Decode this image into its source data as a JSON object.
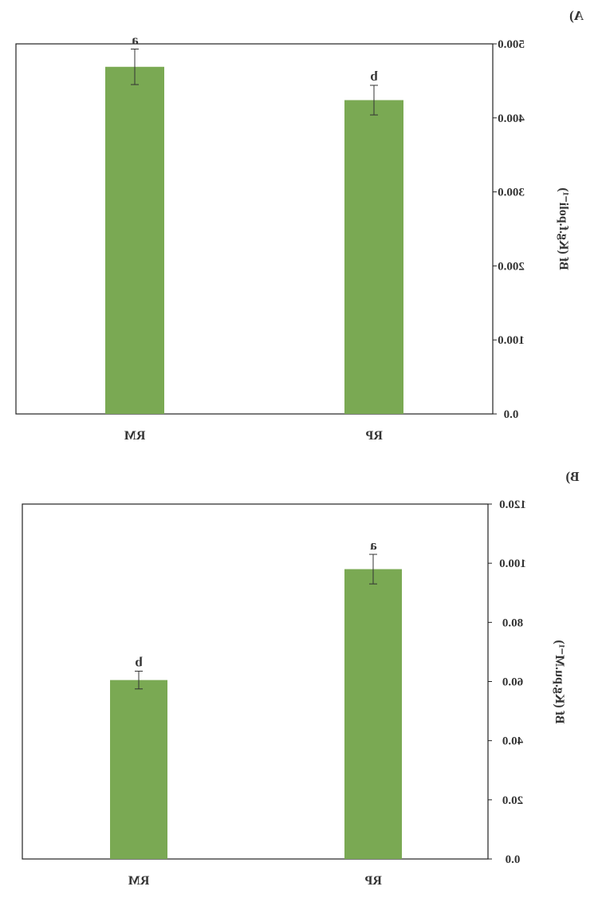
{
  "chart_data": [
    {
      "panel_label": "A)",
      "type": "bar",
      "categories": [
        "RM",
        "RP"
      ],
      "values": [
        469,
        424
      ],
      "errors": [
        24,
        20
      ],
      "significance": [
        "a",
        "b"
      ],
      "ylabel": "Bf (Kg.f.poli⁻¹)",
      "yticks": [
        "0.0",
        "100.0",
        "200.0",
        "300.0",
        "400.0",
        "500.0"
      ],
      "ylim": [
        0,
        500
      ],
      "bar_color": "#7aa953",
      "grid": false,
      "mirrored_horizontally": true
    },
    {
      "panel_label": "B)",
      "type": "bar",
      "categories": [
        "RM",
        "RP"
      ],
      "values": [
        60.5,
        98
      ],
      "errors": [
        3,
        5
      ],
      "significance": [
        "b",
        "a"
      ],
      "ylabel": "Bf (Kg.pu.M⁻¹)",
      "yticks": [
        "0.0",
        "20.0",
        "40.0",
        "60.0",
        "80.0",
        "100.0",
        "120.0"
      ],
      "ylim": [
        0,
        120
      ],
      "bar_color": "#7aa953",
      "grid": false,
      "mirrored_horizontally": true
    }
  ]
}
